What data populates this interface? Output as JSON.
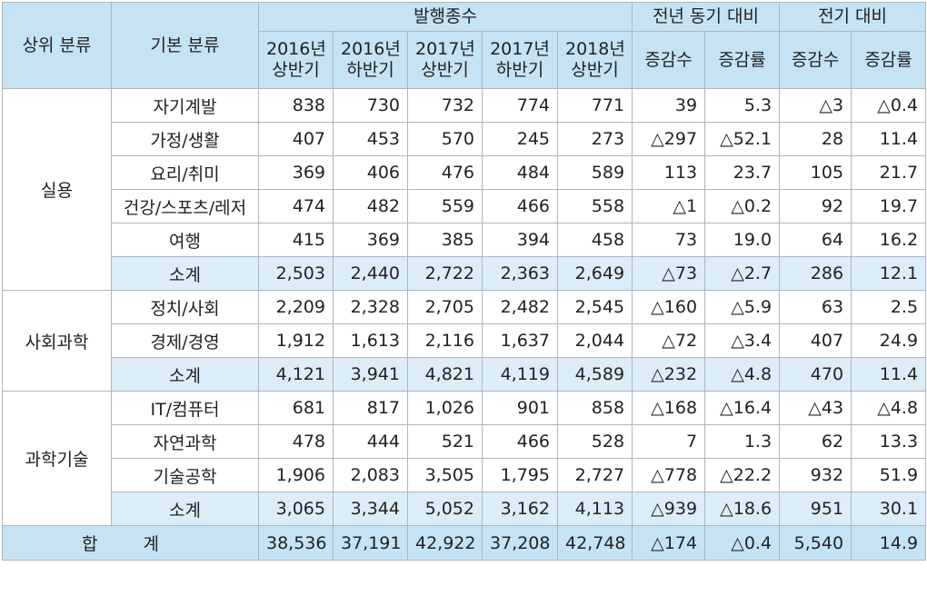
{
  "header": {
    "top_category": "상위 분류",
    "basic_category": "기본 분류",
    "group_issue": "발행종수",
    "group_yoy": "전년 동기 대비",
    "group_prev": "전기 대비",
    "periods": [
      {
        "year": "2016년",
        "half": "상반기"
      },
      {
        "year": "2016년",
        "half": "하반기"
      },
      {
        "year": "2017년",
        "half": "상반기"
      },
      {
        "year": "2017년",
        "half": "하반기"
      },
      {
        "year": "2018년",
        "half": "상반기"
      }
    ],
    "change_count": "증감수",
    "change_rate": "증감률"
  },
  "groups": [
    {
      "name": "실용",
      "rows": [
        {
          "label": "자기계발",
          "values": [
            "838",
            "730",
            "732",
            "774",
            "771",
            "39",
            "5.3",
            "△3",
            "△0.4"
          ]
        },
        {
          "label": "가정/생활",
          "values": [
            "407",
            "453",
            "570",
            "245",
            "273",
            "△297",
            "△52.1",
            "28",
            "11.4"
          ]
        },
        {
          "label": "요리/취미",
          "values": [
            "369",
            "406",
            "476",
            "484",
            "589",
            "113",
            "23.7",
            "105",
            "21.7"
          ]
        },
        {
          "label": "건강/스포츠/레저",
          "values": [
            "474",
            "482",
            "559",
            "466",
            "558",
            "△1",
            "△0.2",
            "92",
            "19.7"
          ]
        },
        {
          "label": "여행",
          "values": [
            "415",
            "369",
            "385",
            "394",
            "458",
            "73",
            "19.0",
            "64",
            "16.2"
          ]
        },
        {
          "label": "소계",
          "values": [
            "2,503",
            "2,440",
            "2,722",
            "2,363",
            "2,649",
            "△73",
            "△2.7",
            "286",
            "12.1"
          ],
          "subtotal": true
        }
      ]
    },
    {
      "name": "사회과학",
      "rows": [
        {
          "label": "정치/사회",
          "values": [
            "2,209",
            "2,328",
            "2,705",
            "2,482",
            "2,545",
            "△160",
            "△5.9",
            "63",
            "2.5"
          ]
        },
        {
          "label": "경제/경영",
          "values": [
            "1,912",
            "1,613",
            "2,116",
            "1,637",
            "2,044",
            "△72",
            "△3.4",
            "407",
            "24.9"
          ]
        },
        {
          "label": "소계",
          "values": [
            "4,121",
            "3,941",
            "4,821",
            "4,119",
            "4,589",
            "△232",
            "△4.8",
            "470",
            "11.4"
          ],
          "subtotal": true
        }
      ]
    },
    {
      "name": "과학기술",
      "rows": [
        {
          "label": "IT/컴퓨터",
          "values": [
            "681",
            "817",
            "1,026",
            "901",
            "858",
            "△168",
            "△16.4",
            "△43",
            "△4.8"
          ]
        },
        {
          "label": "자연과학",
          "values": [
            "478",
            "444",
            "521",
            "466",
            "528",
            "7",
            "1.3",
            "62",
            "13.3"
          ]
        },
        {
          "label": "기술공학",
          "values": [
            "1,906",
            "2,083",
            "3,505",
            "1,795",
            "2,727",
            "△778",
            "△22.2",
            "932",
            "51.9"
          ]
        },
        {
          "label": "소계",
          "values": [
            "3,065",
            "3,344",
            "5,052",
            "3,162",
            "4,113",
            "△939",
            "△18.6",
            "951",
            "30.1"
          ],
          "subtotal": true
        }
      ]
    }
  ],
  "total": {
    "label": "합 계",
    "values": [
      "38,536",
      "37,191",
      "42,922",
      "37,208",
      "42,748",
      "△174",
      "△0.4",
      "5,540",
      "14.9"
    ]
  }
}
